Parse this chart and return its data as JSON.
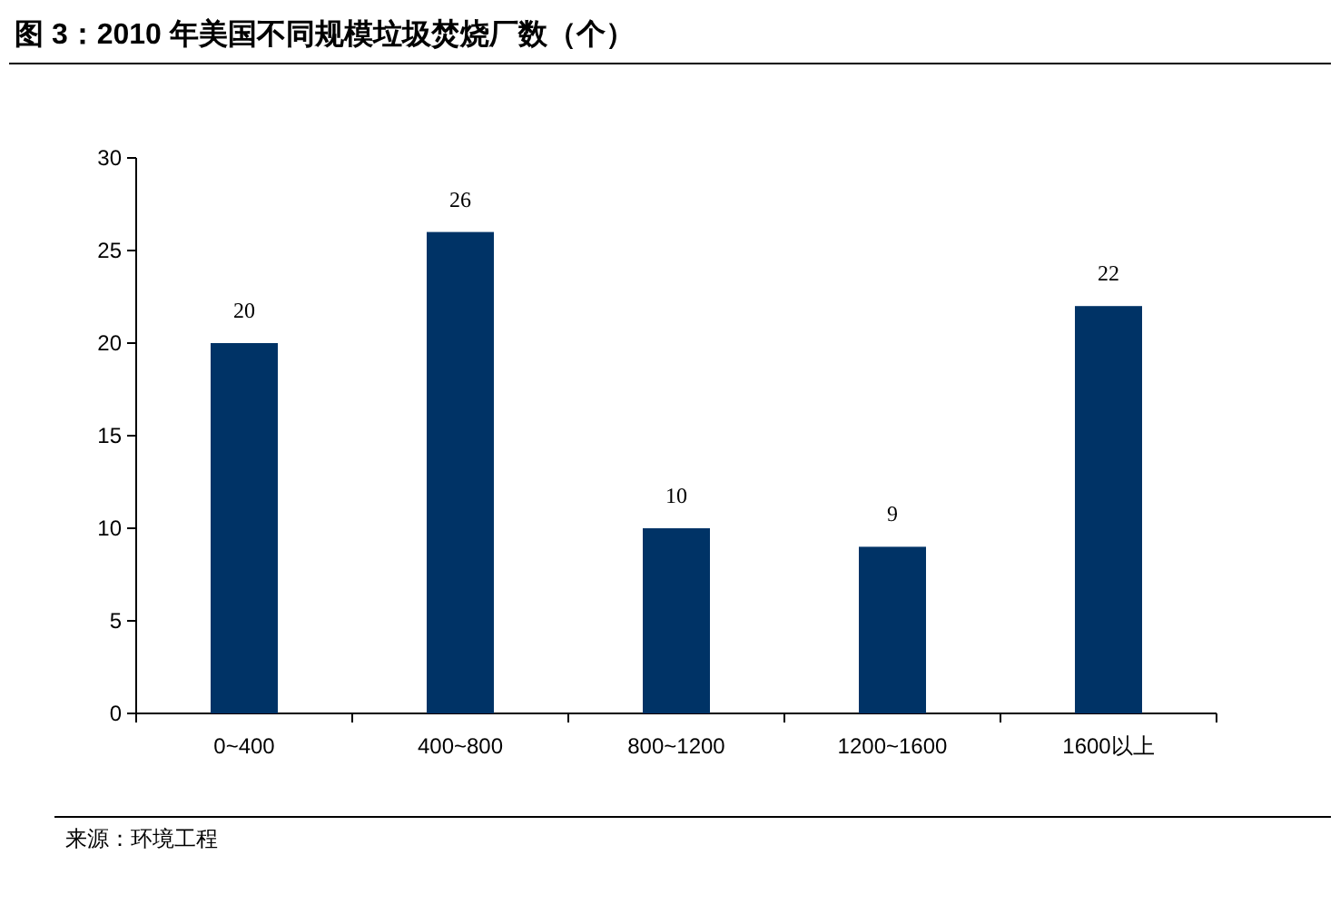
{
  "chart_data": {
    "type": "bar",
    "title": "图 3：2010 年美国不同规模垃圾焚烧厂数（个）",
    "categories": [
      "0~400",
      "400~800",
      "800~1200",
      "1200~1600",
      "1600以上"
    ],
    "values": [
      20,
      26,
      10,
      9,
      22
    ],
    "color": "#003366",
    "ylim": [
      0,
      30
    ],
    "yticks": [
      0,
      5,
      10,
      15,
      20,
      25,
      30
    ],
    "data_labels": true,
    "annotations": [
      "来源：环境工程"
    ]
  }
}
